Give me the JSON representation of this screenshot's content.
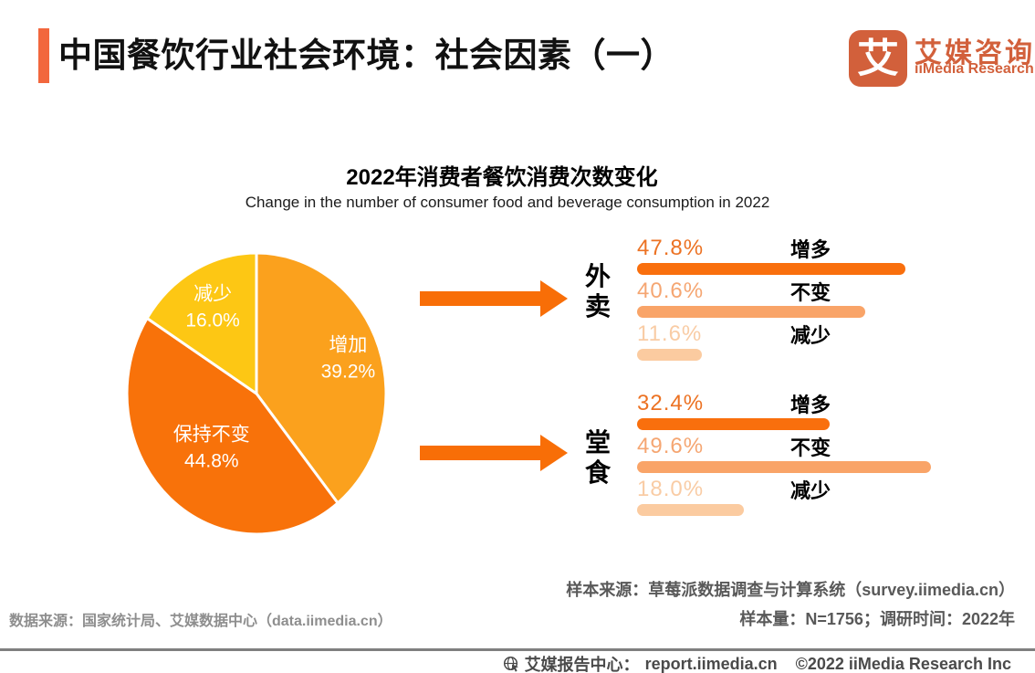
{
  "colors": {
    "accent": "#F2673D",
    "logo": "#D2603B",
    "arrow": "#F86E07",
    "source_right_text": "#595959",
    "source_left_text": "#8E8E8E",
    "footer_text": "#4A4A4A"
  },
  "header": {
    "title": "中国餐饮行业社会环境：社会因素（一）",
    "logo": {
      "glyph": "艾",
      "brand_cn": "艾媒咨询",
      "brand_en": "iiMedia Research"
    }
  },
  "chart_title": "2022年消费者餐饮消费次数变化",
  "chart_subtitle": "Change in the number of consumer food and beverage consumption in 2022",
  "chart_data": [
    {
      "type": "pie",
      "title": "2022年消费者餐饮消费次数变化",
      "subtitle": "Change in the number of consumer food and beverage consumption in 2022",
      "labels": [
        "增加",
        "保持不变",
        "减少"
      ],
      "values": [
        39.2,
        44.8,
        16.0
      ],
      "values_display": [
        "39.2%",
        "44.8%",
        "16.0%"
      ],
      "colors": [
        "#FBA11D",
        "#F8720A",
        "#FDC714"
      ],
      "start_angle_deg": 0,
      "direction": "clockwise",
      "labels_inside": true,
      "legend": "none"
    },
    {
      "type": "bar",
      "orientation": "horizontal",
      "categories": [
        "增多",
        "不变",
        "减少"
      ],
      "groups": [
        {
          "name": "外卖",
          "values": [
            47.8,
            40.6,
            11.6
          ],
          "values_display": [
            "47.8%",
            "40.6%",
            "11.6%"
          ]
        },
        {
          "name": "堂食",
          "values": [
            32.4,
            49.6,
            18.0
          ],
          "values_display": [
            "32.4%",
            "49.6%",
            "18.0%"
          ]
        }
      ],
      "bar_colors": [
        "#F96F0D",
        "#F9A468",
        "#FBCBA0"
      ],
      "value_text_colors": [
        "#EC7223",
        "#F5A672",
        "#F9CCA5"
      ],
      "xlim": [
        0,
        100
      ],
      "grid": false,
      "legend": "none"
    }
  ],
  "sources": {
    "sample_source": "样本来源：草莓派数据调查与计算系统（survey.iimedia.cn）",
    "sample_info": "样本量：N=1756；调研时间：2022年",
    "data_source": "数据来源：国家统计局、艾媒数据中心（data.iimedia.cn）"
  },
  "footer": {
    "label": "艾媒报告中心：",
    "url": "report.iimedia.cn",
    "copyright": "©2022  iiMedia Research  Inc"
  }
}
